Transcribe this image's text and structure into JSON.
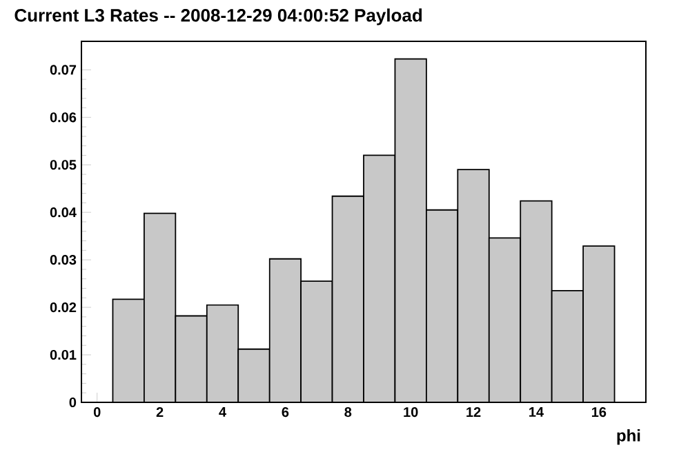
{
  "chart_data": {
    "type": "histogram",
    "title": "Current L3 Rates -- 2008-12-29 04:00:52 Payload",
    "xlabel": "phi",
    "bins": [
      0.5,
      1.5,
      2.5,
      3.5,
      4.5,
      5.5,
      6.5,
      7.5,
      8.5,
      9.5,
      10.5,
      11.5,
      12.5,
      13.5,
      14.5,
      15.5,
      16.5
    ],
    "values": [
      0.0217,
      0.0398,
      0.0182,
      0.0205,
      0.0112,
      0.0302,
      0.0255,
      0.0434,
      0.052,
      0.0723,
      0.0405,
      0.049,
      0.0346,
      0.0424,
      0.0235,
      0.0329
    ],
    "color": "#c8c8c8",
    "xlim": [
      -0.5,
      17.5
    ],
    "xticks": [
      0,
      2,
      4,
      6,
      8,
      10,
      12,
      14,
      16
    ],
    "ylim": [
      0,
      0.076
    ],
    "yticks": [
      0,
      0.01,
      0.02,
      0.03,
      0.04,
      0.05,
      0.06,
      0.07
    ]
  }
}
